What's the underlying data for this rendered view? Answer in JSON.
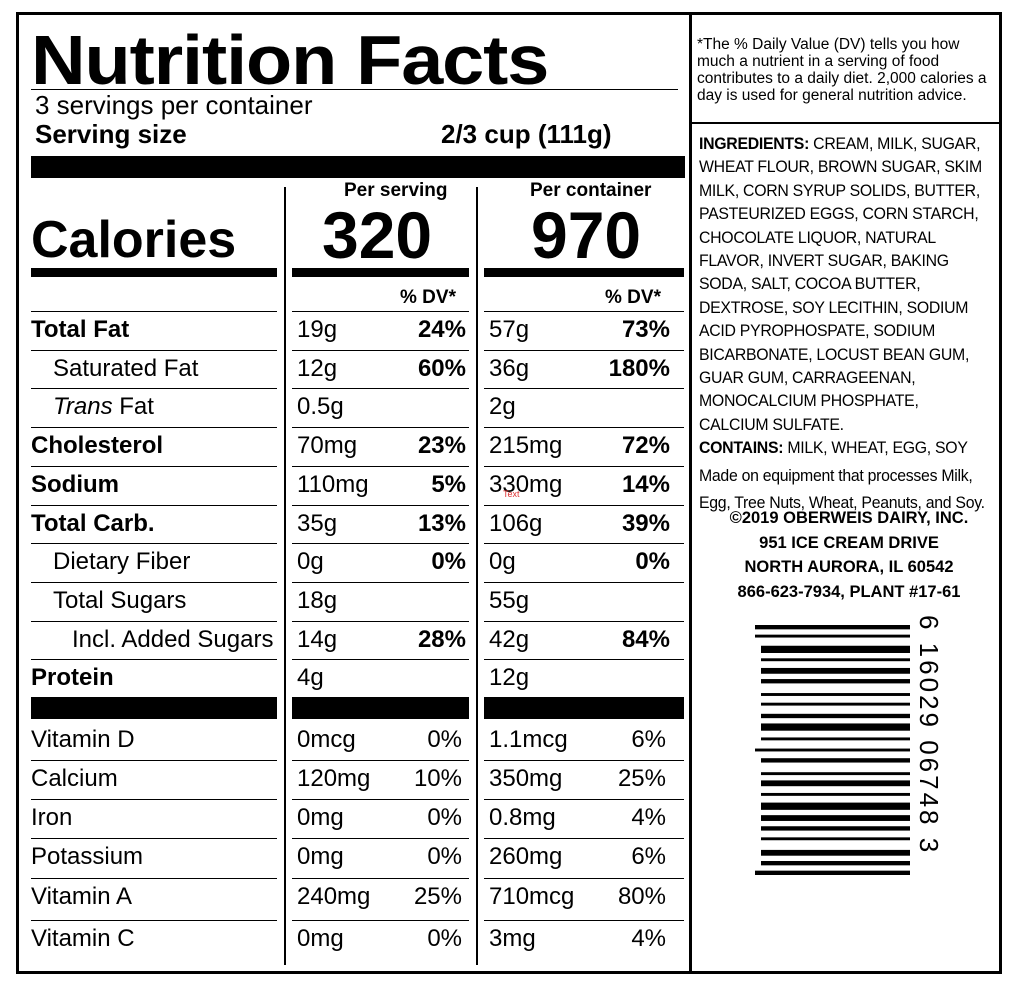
{
  "title": "Nutrition Facts",
  "servings_per_container": "3 servings per container",
  "serving_size_label": "Serving size",
  "serving_size_value": "2/3 cup (111g)",
  "per_serving_label": "Per serving",
  "per_container_label": "Per container",
  "calories_label": "Calories",
  "calories_per_serving": "320",
  "calories_per_container": "970",
  "dv_header": "% DV*",
  "nutrients": [
    {
      "name": "Total Fat",
      "bold": true,
      "indent": 0,
      "s_amt": "19g",
      "s_dv": "24%",
      "c_amt": "57g",
      "c_dv": "73%"
    },
    {
      "name": "Saturated Fat",
      "bold": false,
      "indent": 1,
      "s_amt": "12g",
      "s_dv": "60%",
      "c_amt": "36g",
      "c_dv": "180%"
    },
    {
      "name_italic": "Trans",
      "name_rest": " Fat",
      "bold": false,
      "indent": 1,
      "s_amt": "0.5g",
      "s_dv": "",
      "c_amt": "2g",
      "c_dv": ""
    },
    {
      "name": "Cholesterol",
      "bold": true,
      "indent": 0,
      "s_amt": "70mg",
      "s_dv": "23%",
      "c_amt": "215mg",
      "c_dv": "72%"
    },
    {
      "name": "Sodium",
      "bold": true,
      "indent": 0,
      "s_amt": "110mg",
      "s_dv": "5%",
      "c_amt": "330mg",
      "c_dv": "14%"
    },
    {
      "name": "Total Carb.",
      "bold": true,
      "indent": 0,
      "s_amt": "35g",
      "s_dv": "13%",
      "c_amt": "106g",
      "c_dv": "39%"
    },
    {
      "name": "Dietary Fiber",
      "bold": false,
      "indent": 1,
      "s_amt": "0g",
      "s_dv": "0%",
      "c_amt": "0g",
      "c_dv": "0%"
    },
    {
      "name": "Total Sugars",
      "bold": false,
      "indent": 1,
      "s_amt": "18g",
      "s_dv": "",
      "c_amt": "55g",
      "c_dv": ""
    },
    {
      "name": "Incl. Added Sugars",
      "bold": false,
      "indent": 2,
      "s_amt": "14g",
      "s_dv": "28%",
      "c_amt": "42g",
      "c_dv": "84%"
    },
    {
      "name": "Protein",
      "bold": true,
      "indent": 0,
      "s_amt": "4g",
      "s_dv": "",
      "c_amt": "12g",
      "c_dv": ""
    }
  ],
  "vitamins": [
    {
      "name": "Vitamin D",
      "s_amt": "0mcg",
      "s_dv": "0%",
      "c_amt": "1.1mcg",
      "c_dv": "6%"
    },
    {
      "name": "Calcium",
      "s_amt": "120mg",
      "s_dv": "10%",
      "c_amt": "350mg",
      "c_dv": "25%"
    },
    {
      "name": "Iron",
      "s_amt": "0mg",
      "s_dv": "0%",
      "c_amt": "0.8mg",
      "c_dv": "4%"
    },
    {
      "name": "Potassium",
      "s_amt": "0mg",
      "s_dv": "0%",
      "c_amt": "260mg",
      "c_dv": "6%"
    },
    {
      "name": "Vitamin A",
      "s_amt": "240mg",
      "s_dv": "25%",
      "c_amt": "710mcg",
      "c_dv": "80%"
    },
    {
      "name": "Vitamin C",
      "s_amt": "0mg",
      "s_dv": "0%",
      "c_amt": "3mg",
      "c_dv": "4%"
    }
  ],
  "dv_note": "*The % Daily Value (DV) tells you how much a nutrient in a serving of food contributes to a daily diet. 2,000 calories a day is used for general nutrition advice.",
  "ingredients_label": "INGREDIENTS:",
  "ingredients_text": " CREAM, MILK, SUGAR, WHEAT FLOUR, BROWN SUGAR, SKIM MILK, CORN SYRUP SOLIDS, BUTTER, PASTEURIZED EGGS, CORN STARCH, CHOCOLATE LIQUOR, NATURAL FLAVOR, INVERT SUGAR, BAKING SODA, SALT, COCOA BUTTER, DEXTROSE, SOY LECITHIN, SODIUM ACID PYROPHOSPATE, SODIUM BICARBONATE, LOCUST BEAN GUM, GUAR GUM, CARRAGEENAN, MONOCALCIUM PHOSPHATE, CALCIUM SULFATE.",
  "contains_label": "CONTAINS:",
  "contains_text": " MILK, WHEAT, EGG, SOY",
  "equipment_note": "Made on equipment that processes Milk, Egg, Tree Nuts, Wheat, Peanuts, and Soy.",
  "address": [
    "©2019 OBERWEIS DAIRY, INC.",
    "951 ICE CREAM DRIVE",
    "NORTH AURORA, IL 60542",
    "866-623-7934, PLANT #17-61"
  ],
  "barcode_digits": "6 16029 06748 3",
  "stray_text": "Text"
}
